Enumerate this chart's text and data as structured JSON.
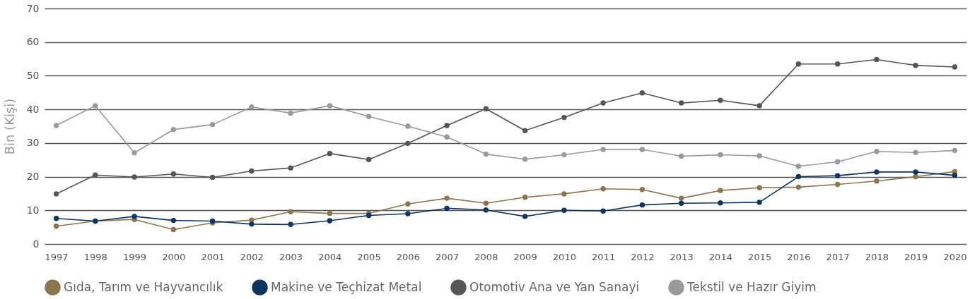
{
  "chart_data": {
    "type": "line",
    "ylabel": "Bin (Kişi)",
    "categories": [
      "1997",
      "1998",
      "1999",
      "2000",
      "2001",
      "2002",
      "2003",
      "2004",
      "2005",
      "2006",
      "2007",
      "2008",
      "2009",
      "2010",
      "2011",
      "2012",
      "2013",
      "2014",
      "2015",
      "2016",
      "2017",
      "2018",
      "2019",
      "2020"
    ],
    "series": [
      {
        "name": "Gıda, Tarım ve Hayvancılık",
        "color": "#8b7550",
        "values": [
          5.3,
          6.8,
          7.3,
          4.3,
          6.3,
          7.1,
          9.6,
          9.1,
          9.1,
          11.9,
          13.6,
          12.1,
          13.9,
          14.9,
          16.4,
          16.2,
          13.6,
          15.9,
          16.7,
          16.9,
          17.7,
          18.7,
          20.0,
          21.5
        ]
      },
      {
        "name": "Makine ve Teçhizat Metal",
        "color": "#0d3560",
        "values": [
          7.6,
          6.8,
          8.2,
          7.0,
          6.8,
          5.9,
          5.8,
          6.9,
          8.5,
          9.0,
          10.6,
          10.1,
          8.2,
          10.0,
          9.8,
          11.6,
          12.1,
          12.2,
          12.4,
          20.0,
          20.3,
          21.4,
          21.4,
          20.4
        ]
      },
      {
        "name": "Otomotiv Ana ve Yan Sanayi",
        "color": "#555555",
        "values": [
          14.9,
          20.5,
          19.9,
          20.8,
          19.8,
          21.7,
          22.6,
          26.9,
          25.1,
          29.9,
          35.2,
          40.2,
          33.7,
          37.6,
          41.9,
          44.9,
          41.9,
          42.7,
          41.1,
          53.5,
          53.5,
          54.8,
          53.1,
          52.6
        ]
      },
      {
        "name": "Tekstil ve Hazır Giyim",
        "color": "#999a9c",
        "values": [
          35.2,
          41.1,
          27.1,
          34.0,
          35.5,
          40.7,
          38.9,
          41.1,
          37.9,
          35.0,
          31.8,
          26.7,
          25.2,
          26.5,
          28.1,
          28.1,
          26.1,
          26.5,
          26.2,
          23.1,
          24.4,
          27.5,
          27.2,
          27.8
        ]
      }
    ],
    "ylim": [
      0,
      70
    ],
    "yticks": [
      0,
      10,
      20,
      30,
      40,
      50,
      60,
      70
    ],
    "grid": "y",
    "legend": "bottom",
    "marker": "circle",
    "line_style": "solid"
  }
}
